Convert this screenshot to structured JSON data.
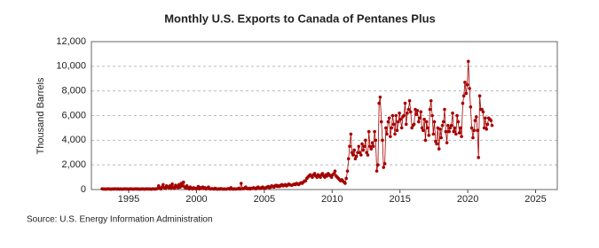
{
  "chart_data": {
    "type": "line",
    "title": "Monthly U.S. Exports to Canada of Pentanes Plus",
    "ylabel": "Thousand Barrels",
    "source": "Source: U.S. Energy Information Administration",
    "color": "#a50000",
    "grid": true,
    "xlim": [
      1992.25,
      2026.6
    ],
    "xticks": [
      1995,
      2000,
      2005,
      2010,
      2015,
      2020,
      2025
    ],
    "ylim": [
      0,
      12000
    ],
    "yticks": [
      0,
      {
        "value": 2000,
        "label": "2,000"
      },
      {
        "value": 4000,
        "label": "4,000"
      },
      {
        "value": 6000,
        "label": "6,000"
      },
      {
        "value": 8000,
        "label": "8,000"
      },
      {
        "value": 10000,
        "label": "10,000"
      },
      {
        "value": 12000,
        "label": "12,000"
      }
    ],
    "x": [
      1993.04,
      1993.13,
      1993.21,
      1993.29,
      1993.38,
      1993.46,
      1993.54,
      1993.63,
      1993.71,
      1993.79,
      1993.88,
      1993.96,
      1994.04,
      1994.13,
      1994.21,
      1994.29,
      1994.38,
      1994.46,
      1994.54,
      1994.63,
      1994.71,
      1994.79,
      1994.88,
      1994.96,
      1995.04,
      1995.13,
      1995.21,
      1995.29,
      1995.38,
      1995.46,
      1995.54,
      1995.63,
      1995.71,
      1995.79,
      1995.88,
      1995.96,
      1996.04,
      1996.13,
      1996.21,
      1996.29,
      1996.38,
      1996.46,
      1996.54,
      1996.63,
      1996.71,
      1996.79,
      1996.88,
      1996.96,
      1997.04,
      1997.13,
      1997.21,
      1997.29,
      1997.38,
      1997.46,
      1997.54,
      1997.63,
      1997.71,
      1997.79,
      1997.88,
      1997.96,
      1998.04,
      1998.13,
      1998.21,
      1998.29,
      1998.38,
      1998.46,
      1998.54,
      1998.63,
      1998.71,
      1998.79,
      1998.88,
      1998.96,
      1999.04,
      1999.13,
      1999.21,
      1999.29,
      1999.38,
      1999.46,
      1999.54,
      1999.63,
      1999.71,
      1999.79,
      1999.88,
      1999.96,
      2000.04,
      2000.13,
      2000.21,
      2000.29,
      2000.38,
      2000.46,
      2000.54,
      2000.63,
      2000.71,
      2000.79,
      2000.88,
      2000.96,
      2001.04,
      2001.13,
      2001.21,
      2001.29,
      2001.38,
      2001.46,
      2001.54,
      2001.63,
      2001.71,
      2001.79,
      2001.88,
      2001.96,
      2002.04,
      2002.13,
      2002.21,
      2002.29,
      2002.38,
      2002.46,
      2002.54,
      2002.63,
      2002.71,
      2002.79,
      2002.88,
      2002.96,
      2003.04,
      2003.13,
      2003.21,
      2003.29,
      2003.38,
      2003.46,
      2003.54,
      2003.63,
      2003.71,
      2003.79,
      2003.88,
      2003.96,
      2004.04,
      2004.13,
      2004.21,
      2004.29,
      2004.38,
      2004.46,
      2004.54,
      2004.63,
      2004.71,
      2004.79,
      2004.88,
      2004.96,
      2005.04,
      2005.13,
      2005.21,
      2005.29,
      2005.38,
      2005.46,
      2005.54,
      2005.63,
      2005.71,
      2005.79,
      2005.88,
      2005.96,
      2006.04,
      2006.13,
      2006.21,
      2006.29,
      2006.38,
      2006.46,
      2006.54,
      2006.63,
      2006.71,
      2006.79,
      2006.88,
      2006.96,
      2007.04,
      2007.13,
      2007.21,
      2007.29,
      2007.38,
      2007.46,
      2007.54,
      2007.63,
      2007.71,
      2007.79,
      2007.88,
      2007.96,
      2008.04,
      2008.13,
      2008.21,
      2008.29,
      2008.38,
      2008.46,
      2008.54,
      2008.63,
      2008.71,
      2008.79,
      2008.88,
      2008.96,
      2009.04,
      2009.13,
      2009.21,
      2009.29,
      2009.38,
      2009.46,
      2009.54,
      2009.63,
      2009.71,
      2009.79,
      2009.88,
      2009.96,
      2010.04,
      2010.13,
      2010.21,
      2010.29,
      2010.38,
      2010.46,
      2010.54,
      2010.63,
      2010.71,
      2010.79,
      2010.88,
      2010.96,
      2011.04,
      2011.13,
      2011.21,
      2011.29,
      2011.38,
      2011.46,
      2011.54,
      2011.63,
      2011.71,
      2011.79,
      2011.88,
      2011.96,
      2012.04,
      2012.13,
      2012.21,
      2012.29,
      2012.38,
      2012.46,
      2012.54,
      2012.63,
      2012.71,
      2012.79,
      2012.88,
      2012.96,
      2013.04,
      2013.13,
      2013.21,
      2013.29,
      2013.38,
      2013.46,
      2013.54,
      2013.63,
      2013.71,
      2013.79,
      2013.88,
      2013.96,
      2014.04,
      2014.13,
      2014.21,
      2014.29,
      2014.38,
      2014.46,
      2014.54,
      2014.63,
      2014.71,
      2014.79,
      2014.88,
      2014.96,
      2015.04,
      2015.13,
      2015.21,
      2015.29,
      2015.38,
      2015.46,
      2015.54,
      2015.63,
      2015.71,
      2015.79,
      2015.88,
      2015.96,
      2016.04,
      2016.13,
      2016.21,
      2016.29,
      2016.38,
      2016.46,
      2016.54,
      2016.63,
      2016.71,
      2016.79,
      2016.88,
      2016.96,
      2017.04,
      2017.13,
      2017.21,
      2017.29,
      2017.38,
      2017.46,
      2017.54,
      2017.63,
      2017.71,
      2017.79,
      2017.88,
      2017.96,
      2018.04,
      2018.13,
      2018.21,
      2018.29,
      2018.38,
      2018.46,
      2018.54,
      2018.63,
      2018.71,
      2018.79,
      2018.88,
      2018.96,
      2019.04,
      2019.13,
      2019.21,
      2019.29,
      2019.38,
      2019.46,
      2019.54,
      2019.63,
      2019.71,
      2019.79,
      2019.88,
      2019.96,
      2020.04,
      2020.13,
      2020.21,
      2020.29,
      2020.38,
      2020.46,
      2020.54,
      2020.63,
      2020.71,
      2020.79,
      2020.88,
      2020.96,
      2021.04,
      2021.13,
      2021.21,
      2021.29,
      2021.38,
      2021.46,
      2021.54,
      2021.63,
      2021.71,
      2021.79
    ],
    "values": [
      60,
      40,
      50,
      30,
      40,
      60,
      50,
      40,
      30,
      50,
      40,
      60,
      50,
      40,
      60,
      30,
      50,
      40,
      30,
      50,
      60,
      40,
      50,
      30,
      40,
      60,
      50,
      30,
      40,
      50,
      60,
      40,
      50,
      30,
      40,
      50,
      50,
      40,
      30,
      60,
      50,
      40,
      50,
      30,
      40,
      60,
      50,
      40,
      60,
      80,
      300,
      100,
      50,
      200,
      400,
      150,
      100,
      300,
      200,
      150,
      300,
      100,
      450,
      200,
      100,
      350,
      250,
      150,
      400,
      200,
      500,
      300,
      600,
      200,
      100,
      300,
      150,
      50,
      200,
      100,
      50,
      150,
      100,
      50,
      100,
      250,
      50,
      150,
      100,
      200,
      80,
      150,
      50,
      100,
      200,
      60,
      50,
      80,
      60,
      40,
      100,
      50,
      30,
      60,
      40,
      80,
      50,
      30,
      50,
      30,
      40,
      60,
      80,
      40,
      150,
      50,
      30,
      60,
      40,
      50,
      60,
      100,
      40,
      500,
      80,
      60,
      100,
      200,
      80,
      60,
      100,
      50,
      100,
      80,
      150,
      100,
      60,
      150,
      200,
      100,
      80,
      150,
      200,
      120,
      100,
      150,
      200,
      250,
      150,
      200,
      300,
      250,
      200,
      300,
      350,
      250,
      300,
      250,
      350,
      400,
      300,
      350,
      400,
      300,
      350,
      450,
      400,
      350,
      350,
      400,
      450,
      400,
      500,
      450,
      400,
      500,
      550,
      500,
      600,
      700,
      700,
      900,
      1000,
      1100,
      1200,
      1100,
      1000,
      1200,
      1300,
      1100,
      1000,
      1200,
      1100,
      1000,
      1200,
      1300,
      1100,
      1000,
      1200,
      1100,
      1300,
      1200,
      1100,
      1000,
      1200,
      1300,
      1500,
      1100,
      1000,
      900,
      800,
      700,
      800,
      700,
      600,
      500,
      900,
      1500,
      2500,
      3500,
      4500,
      3000,
      2800,
      3200,
      2500,
      2700,
      3000,
      3500,
      3000,
      2800,
      3700,
      3200,
      3500,
      4000,
      3000,
      2800,
      4700,
      3500,
      3300,
      3800,
      3500,
      4700,
      4000,
      1500,
      2000,
      7000,
      7500,
      5500,
      4000,
      1800,
      2100,
      5000,
      4500,
      5500,
      5800,
      4300,
      5000,
      6000,
      5300,
      4500,
      6000,
      4800,
      5500,
      6200,
      5700,
      5000,
      5900,
      6000,
      7000,
      5300,
      6200,
      6500,
      7200,
      6300,
      5000,
      5200,
      5300,
      6500,
      6100,
      6400,
      5500,
      5800,
      6300,
      5000,
      4800,
      5700,
      4000,
      5500,
      5000,
      4400,
      6500,
      7200,
      6000,
      4500,
      5500,
      3900,
      3700,
      5000,
      3300,
      4900,
      4200,
      5200,
      5500,
      6500,
      4700,
      3800,
      5200,
      4700,
      5000,
      5200,
      6200,
      4700,
      5000,
      4500,
      6000,
      5500,
      4600,
      5000,
      4300,
      7000,
      7600,
      8700,
      7800,
      8500,
      10400,
      8200,
      6700,
      5000,
      4200,
      4800,
      5600,
      5900,
      4800,
      2600,
      7600,
      6500,
      6500,
      6300,
      5000,
      5800,
      4900,
      5300,
      5800,
      5700,
      5600,
      5200
    ]
  }
}
